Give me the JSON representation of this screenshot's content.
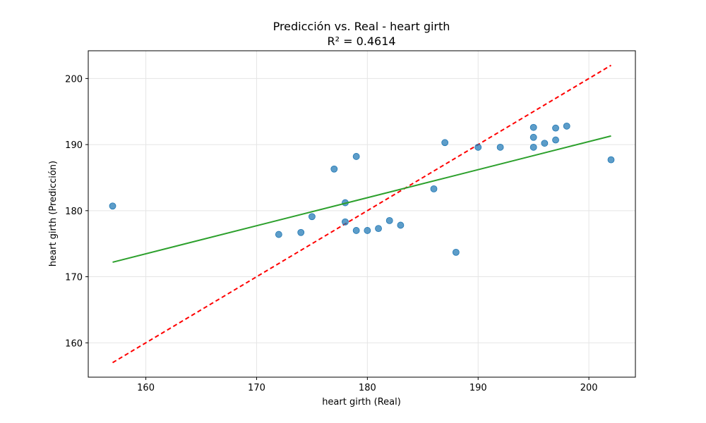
{
  "chart_data": {
    "type": "scatter",
    "title": "Predicción vs. Real - heart girth",
    "subtitle": "R² = 0.4614",
    "xlabel": "heart girth (Real)",
    "ylabel": "heart girth (Predicción)",
    "xlim": [
      154.8,
      204.2
    ],
    "ylim": [
      154.8,
      204.2
    ],
    "xticks": [
      160,
      170,
      180,
      190,
      200
    ],
    "yticks": [
      160,
      170,
      180,
      190,
      200
    ],
    "grid": true,
    "colors": {
      "points": "#1f77b4",
      "ideal_line": "#ff0000",
      "fit_line": "#2ca02c",
      "grid": "#e5e5e5"
    },
    "points": [
      {
        "x": 157,
        "y": 180.7
      },
      {
        "x": 172,
        "y": 176.4
      },
      {
        "x": 174,
        "y": 176.7
      },
      {
        "x": 175,
        "y": 179.1
      },
      {
        "x": 177,
        "y": 186.3
      },
      {
        "x": 178,
        "y": 181.2
      },
      {
        "x": 178,
        "y": 178.3
      },
      {
        "x": 179,
        "y": 177.0
      },
      {
        "x": 179,
        "y": 188.2
      },
      {
        "x": 180,
        "y": 177.0
      },
      {
        "x": 181,
        "y": 177.3
      },
      {
        "x": 182,
        "y": 178.5
      },
      {
        "x": 183,
        "y": 177.8
      },
      {
        "x": 186,
        "y": 183.3
      },
      {
        "x": 187,
        "y": 190.3
      },
      {
        "x": 188,
        "y": 173.7
      },
      {
        "x": 190,
        "y": 189.6
      },
      {
        "x": 192,
        "y": 189.6
      },
      {
        "x": 195,
        "y": 192.6
      },
      {
        "x": 195,
        "y": 191.1
      },
      {
        "x": 195,
        "y": 189.6
      },
      {
        "x": 196,
        "y": 190.2
      },
      {
        "x": 197,
        "y": 192.5
      },
      {
        "x": 197,
        "y": 190.7
      },
      {
        "x": 198,
        "y": 192.8
      },
      {
        "x": 202,
        "y": 187.7
      }
    ],
    "ideal_line": {
      "x": [
        157,
        202
      ],
      "y": [
        157,
        202
      ]
    },
    "fit_line": {
      "x": [
        157,
        202
      ],
      "y": [
        172.2,
        191.3
      ]
    }
  }
}
